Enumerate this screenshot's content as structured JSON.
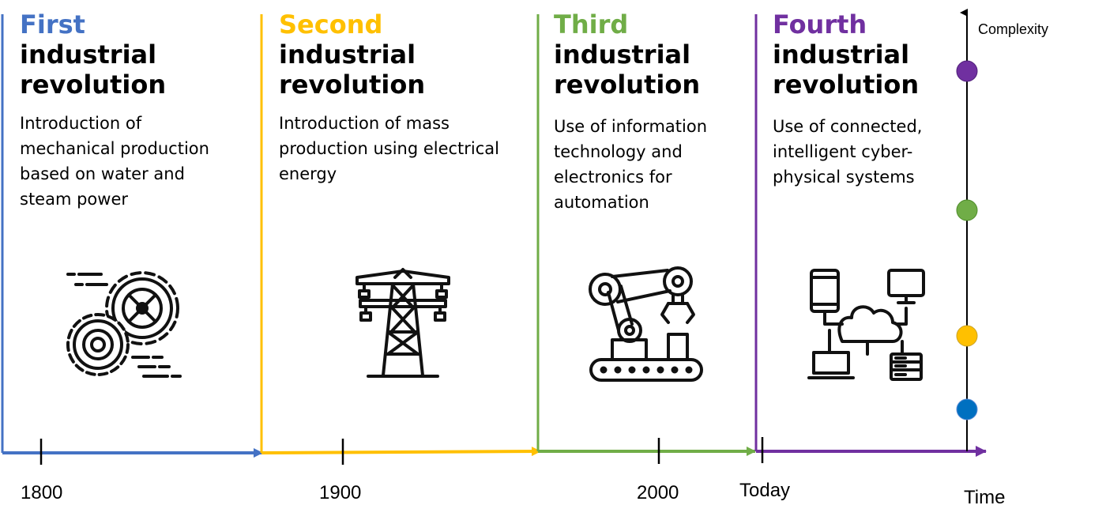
{
  "colors": {
    "first": "#4472C4",
    "second": "#FFC000",
    "third": "#70AD47",
    "fourth": "#7030A0",
    "point_blue": "#0070C0",
    "point_yellow": "#FFC000",
    "point_green": "#70AD47",
    "point_purple": "#7030A0"
  },
  "revolutions": [
    {
      "ordinal": "First",
      "title": "industrial\nrevolution",
      "description": "Introduction of\nmechanical production\nbased on water and\nsteam power",
      "icon": "gears-icon"
    },
    {
      "ordinal": "Second",
      "title": "industrial\nrevolution",
      "description": "Introduction of mass\nproduction using electrical\nenergy",
      "icon": "power-tower-icon"
    },
    {
      "ordinal": "Third",
      "title": "industrial\nrevolution",
      "description": "Use of information\ntechnology and\nelectronics for\nautomation",
      "icon": "robot-arm-icon"
    },
    {
      "ordinal": "Fourth",
      "title": "industrial\nrevolution",
      "description": "Use of connected,\nintelligent cyber-\nphysical systems",
      "icon": "cloud-network-icon"
    }
  ],
  "timeline": {
    "ticks": [
      "1800",
      "1900",
      "2000",
      "Today"
    ]
  },
  "axes": {
    "x_label": "Time",
    "y_label": "Complexity"
  }
}
